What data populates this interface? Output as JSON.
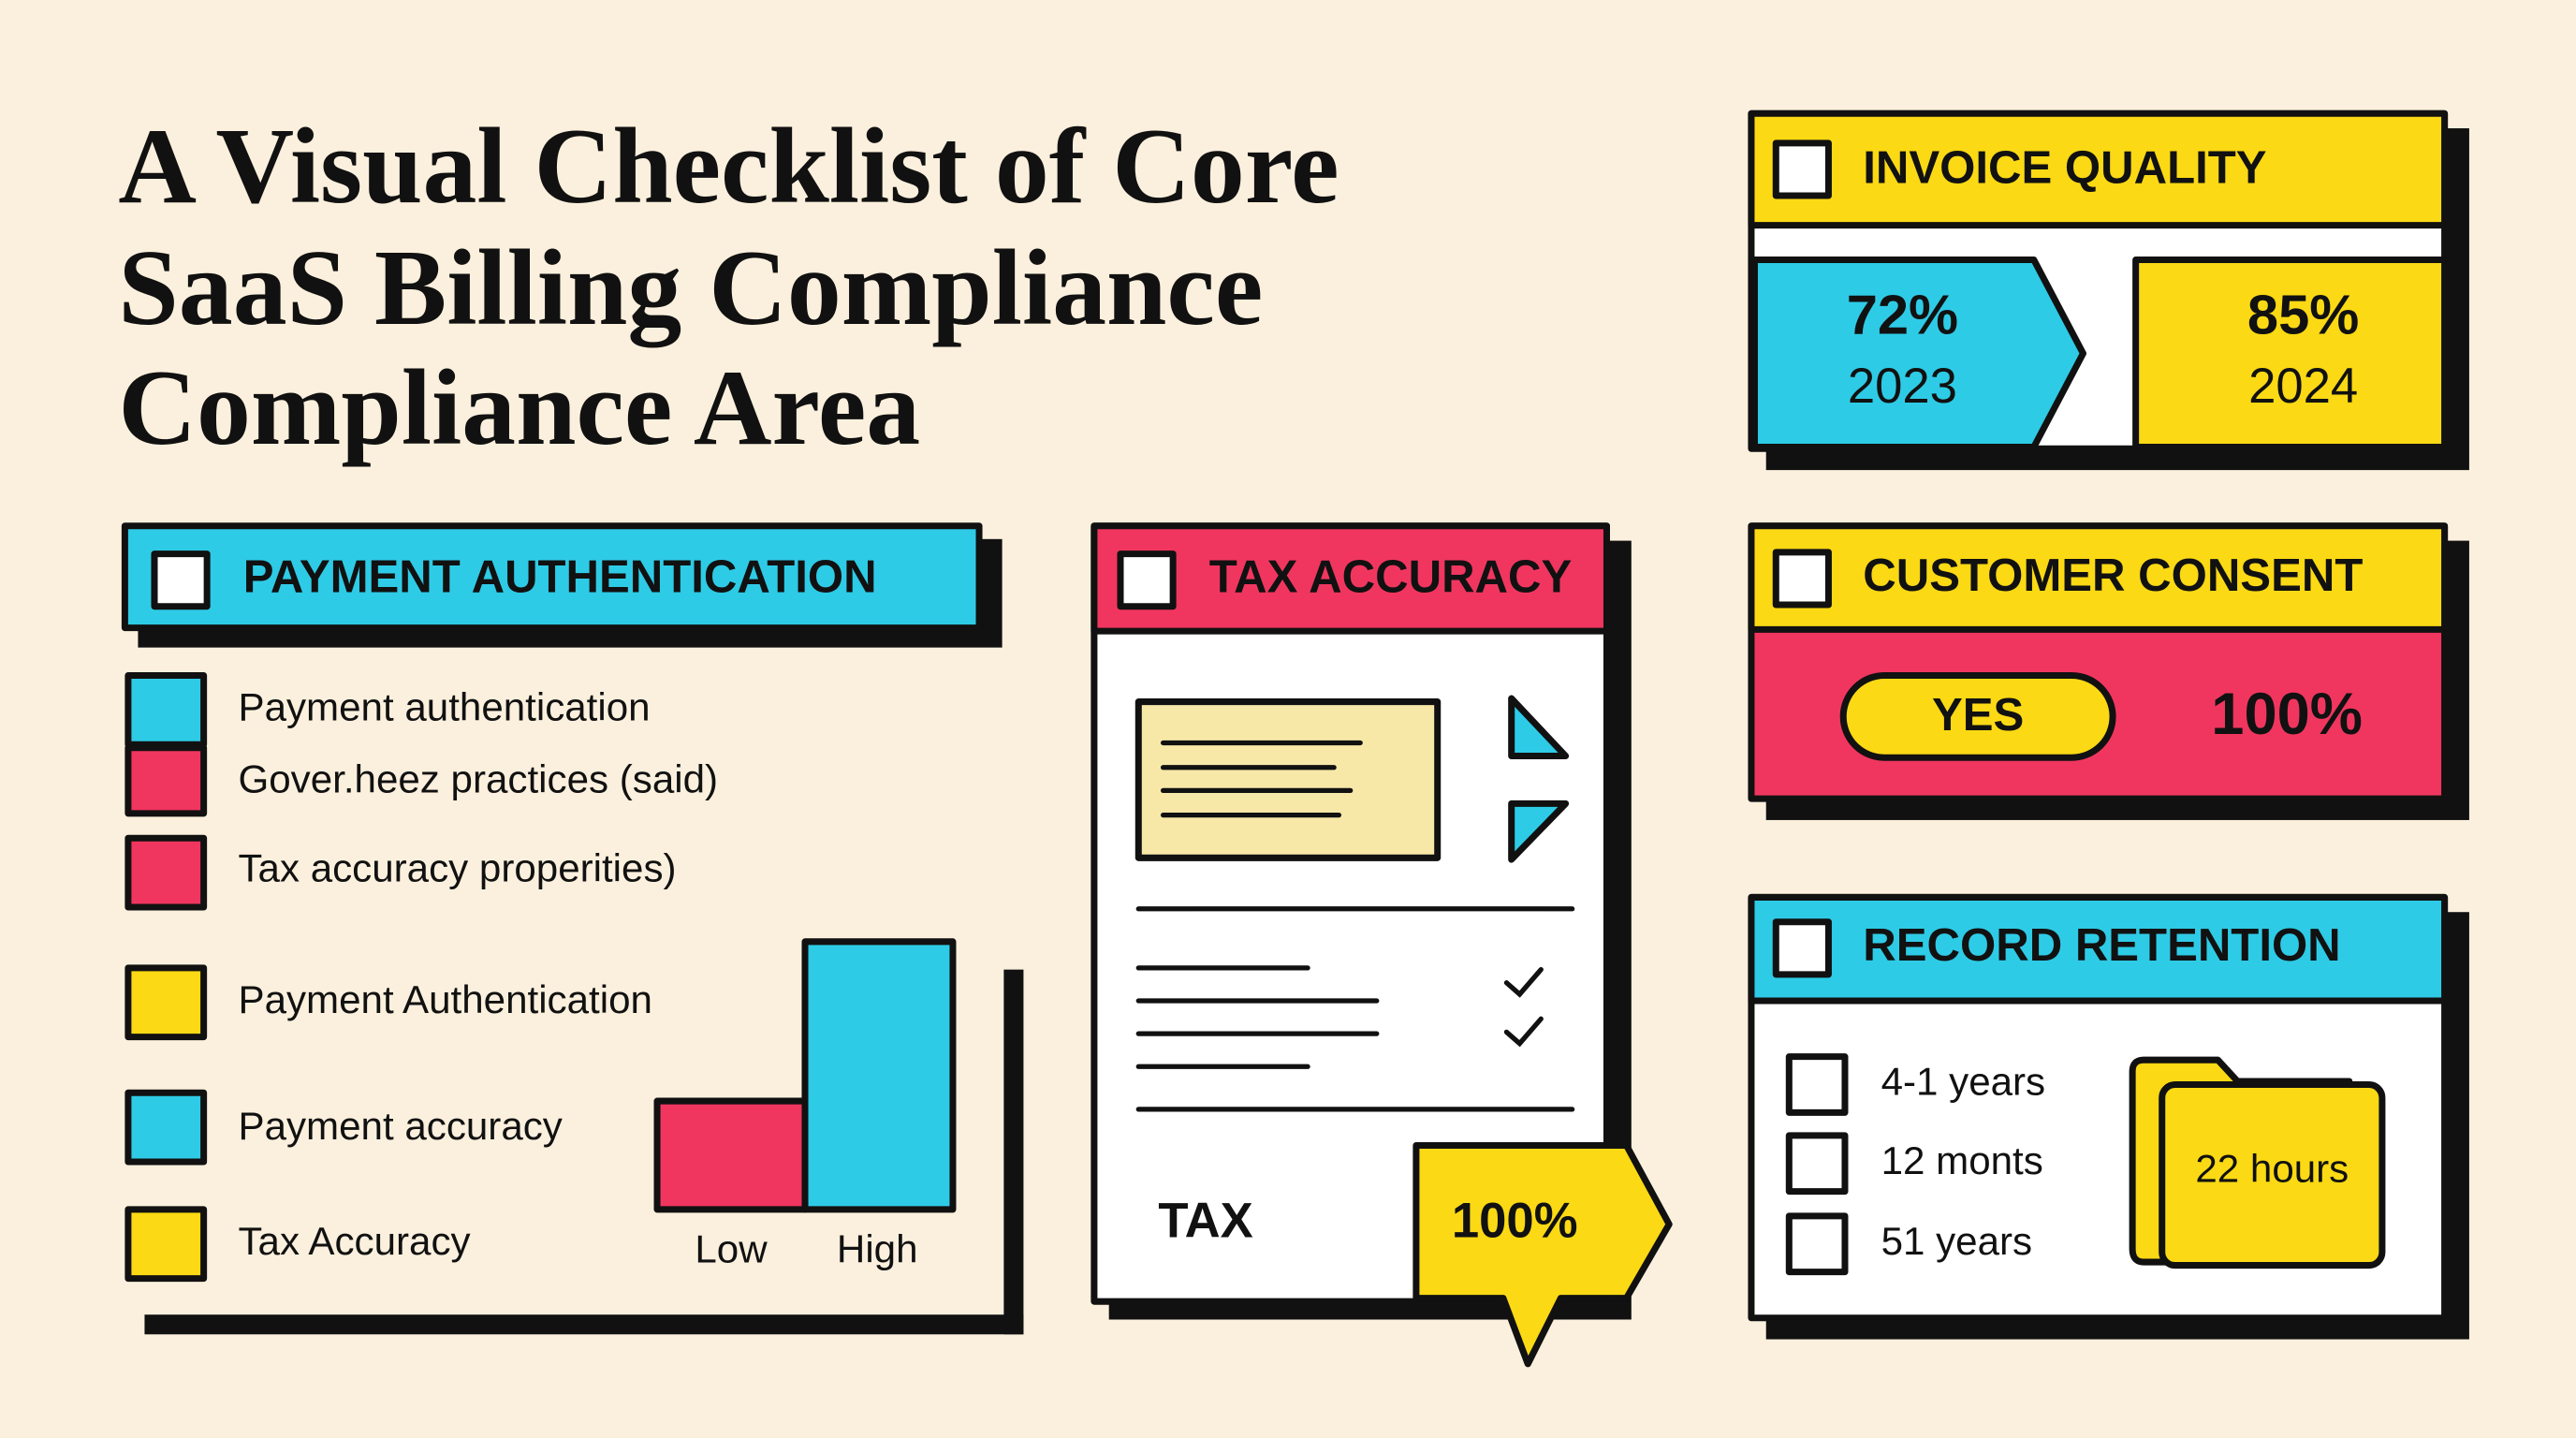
{
  "header": {
    "title_lines": [
      "A Visual Checklist of Core",
      "SaaS Billing Compliance",
      "Compliance Area"
    ]
  },
  "payment_authentication": {
    "title": "PAYMENT AUTHENTICATION",
    "legend": [
      "Payment authentication",
      "Gover.heez practices (said)",
      "Tax accuracy properities)",
      "Payment Authentication",
      "Payment accuracy",
      "Tax Accuracy"
    ],
    "chart_labels": [
      "Low",
      "High"
    ]
  },
  "tax_accuracy": {
    "title": "TAX ACCURACY",
    "label": "TAX",
    "badge": "100%"
  },
  "invoice_quality": {
    "title": "INVOICE QUALITY",
    "items": [
      {
        "value": "72%",
        "year": "2023"
      },
      {
        "value": "85%",
        "year": "2024"
      }
    ]
  },
  "customer_consent": {
    "title": "CUSTOMER CONSENT",
    "answer": "YES",
    "value": "100%"
  },
  "record_retention": {
    "title": "RECORD RETENTION",
    "options": [
      "4-1 years",
      "12 monts",
      "51 years"
    ],
    "folder_label": "22 hours"
  }
}
